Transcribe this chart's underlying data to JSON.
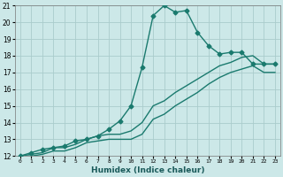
{
  "xlabel": "Humidex (Indice chaleur)",
  "ylabel": "",
  "background_color": "#cce8e8",
  "grid_color": "#aacccc",
  "line_color": "#1a7a6e",
  "xlim": [
    -0.5,
    23.5
  ],
  "ylim": [
    12,
    21
  ],
  "xticks": [
    0,
    1,
    2,
    3,
    4,
    5,
    6,
    7,
    8,
    9,
    10,
    11,
    12,
    13,
    14,
    15,
    16,
    17,
    18,
    19,
    20,
    21,
    22,
    23
  ],
  "yticks": [
    12,
    13,
    14,
    15,
    16,
    17,
    18,
    19,
    20,
    21
  ],
  "series1_x": [
    0,
    1,
    2,
    3,
    4,
    5,
    6,
    7,
    8,
    9,
    10,
    11,
    12,
    13,
    14,
    15,
    16,
    17,
    18,
    19,
    20,
    21,
    22,
    23
  ],
  "series1_y": [
    12.0,
    12.2,
    12.4,
    12.5,
    12.6,
    12.9,
    13.0,
    13.2,
    13.6,
    14.1,
    15.0,
    17.3,
    20.4,
    21.0,
    20.6,
    20.7,
    19.4,
    18.6,
    18.1,
    18.2,
    18.2,
    17.5,
    17.5,
    17.5
  ],
  "series2_x": [
    0,
    1,
    2,
    3,
    4,
    5,
    6,
    7,
    8,
    9,
    10,
    11,
    12,
    13,
    14,
    15,
    16,
    17,
    18,
    19,
    20,
    21,
    22,
    23
  ],
  "series2_y": [
    12.0,
    12.1,
    12.2,
    12.5,
    12.5,
    12.7,
    13.0,
    13.2,
    13.3,
    13.3,
    13.5,
    14.0,
    15.0,
    15.3,
    15.8,
    16.2,
    16.6,
    17.0,
    17.4,
    17.6,
    17.9,
    18.0,
    17.5,
    17.5
  ],
  "series3_x": [
    0,
    1,
    2,
    3,
    4,
    5,
    6,
    7,
    8,
    9,
    10,
    11,
    12,
    13,
    14,
    15,
    16,
    17,
    18,
    19,
    20,
    21,
    22,
    23
  ],
  "series3_y": [
    12.0,
    12.0,
    12.1,
    12.3,
    12.3,
    12.5,
    12.8,
    12.9,
    13.0,
    13.0,
    13.0,
    13.3,
    14.2,
    14.5,
    15.0,
    15.4,
    15.8,
    16.3,
    16.7,
    17.0,
    17.2,
    17.4,
    17.0,
    17.0
  ],
  "marker": "D",
  "marker_size": 2.5,
  "linewidth": 1.0
}
